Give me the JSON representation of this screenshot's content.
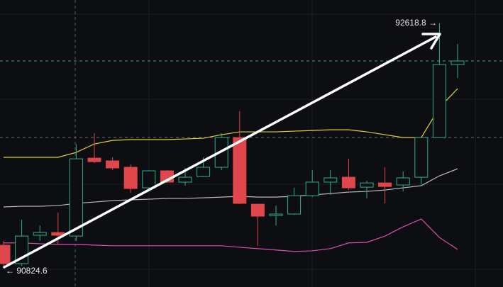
{
  "chart_data": {
    "type": "candlestick",
    "ylim": [
      90684.4,
      92790.4
    ],
    "up_color": "#2fae8c",
    "down_color": "#e0474c",
    "open": [
      90991,
      90856,
      91064,
      91084,
      91058,
      91630,
      91610,
      91563,
      91412,
      91537,
      91454,
      91495,
      91563,
      91781,
      91292,
      91209,
      91220,
      91355,
      91454,
      91490,
      91417,
      91448,
      91433,
      91490,
      91781,
      92317
    ],
    "high": [
      91022,
      91178,
      91136,
      91230,
      91734,
      91812,
      91636,
      91584,
      91542,
      91542,
      91558,
      91636,
      91812,
      91974,
      91292,
      91282,
      91412,
      91542,
      91542,
      91625,
      91464,
      91563,
      91532,
      91781,
      92618.8,
      92468
    ],
    "low": [
      90824.6,
      90840,
      91022,
      90996,
      91022,
      91594,
      91542,
      91376,
      91407,
      91448,
      91428,
      91490,
      91542,
      91292,
      90986,
      91136,
      91214,
      91344,
      91360,
      91396,
      91334,
      91298,
      91386,
      91438,
      91781,
      92218
    ],
    "close": [
      90856,
      91058,
      91084,
      91064,
      91625,
      91604,
      91558,
      91407,
      91537,
      91454,
      91490,
      91563,
      91781,
      91298,
      91204,
      91220,
      91355,
      91454,
      91485,
      91412,
      91448,
      91422,
      91485,
      91781,
      92317,
      92343
    ],
    "lines": [
      {
        "color": "#e3cf3b",
        "values": [
          91636,
          91636,
          91636,
          91636,
          91672,
          91734,
          91760,
          91766,
          91766,
          91766,
          91771,
          91776,
          91802,
          91823,
          91823,
          91823,
          91828,
          91833,
          91838,
          91838,
          91823,
          91802,
          91781,
          91781,
          92000,
          92140
        ]
      },
      {
        "color": "#b9b9b9",
        "values": [
          91272,
          91277,
          91277,
          91282,
          91298,
          91308,
          91318,
          91324,
          91329,
          91334,
          91334,
          91339,
          91344,
          91350,
          91344,
          91344,
          91350,
          91360,
          91370,
          91381,
          91386,
          91396,
          91412,
          91428,
          91500,
          91552
        ]
      },
      {
        "color": "#d64fb0",
        "values": [
          91008,
          91008,
          91002,
          90997,
          90997,
          90992,
          90987,
          90987,
          90987,
          90987,
          90987,
          90987,
          90987,
          90976,
          90966,
          90956,
          90945,
          90950,
          90966,
          91008,
          91012,
          91058,
          91126,
          91183,
          91048,
          90960
        ]
      }
    ],
    "high_label": "92618.8 →",
    "low_label": "← 90824.6"
  }
}
